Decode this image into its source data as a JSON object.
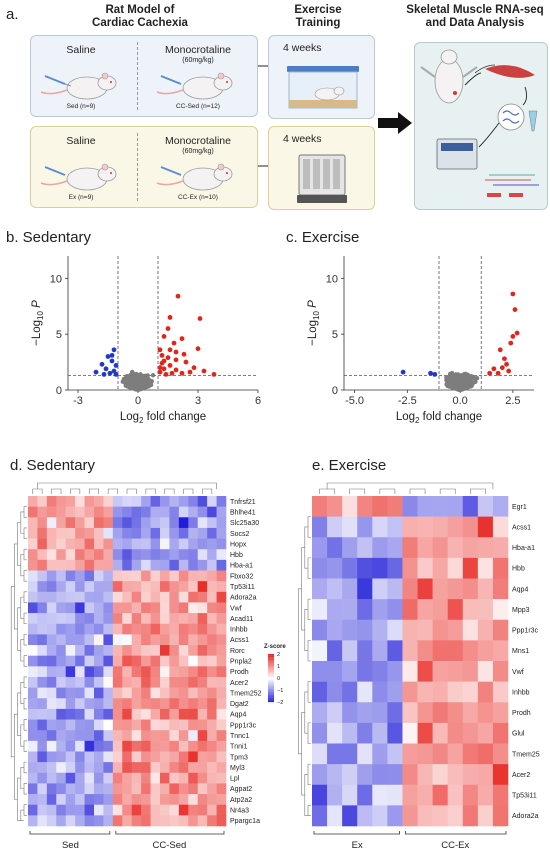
{
  "panel_a": {
    "label": "a.",
    "title_model": "Rat Model of\nCardiac Cachexia",
    "title_training": "Exercise\nTraining",
    "title_rnaseq": "Skeletal Muscle RNA-seq\nand Data Analysis",
    "top": {
      "saline": "Saline",
      "mct": "Monocrotaline",
      "dose": "(60mg/kg)",
      "g1": "Sed (n=9)",
      "g2": "CC-Sed (n=12)",
      "weeks": "4 weeks"
    },
    "bottom": {
      "saline": "Saline",
      "mct": "Monocrotaline",
      "dose": "(60mg/kg)",
      "g1": "Ex (n=9)",
      "g2": "CC-Ex (n=10)",
      "weeks": "4 weeks"
    }
  },
  "panel_b": {
    "label": "b. Sedentary"
  },
  "panel_c": {
    "label": "c. Exercise"
  },
  "panel_d": {
    "label": "d. Sedentary",
    "group1": "Sed",
    "group2": "CC-Sed"
  },
  "panel_e": {
    "label": "e. Exercise",
    "group1": "Ex",
    "group2": "CC-Ex"
  },
  "colors": {
    "up": "#e0261c",
    "down": "#2238c9",
    "ns": "#7d7d7d",
    "high": "#e8251f",
    "mid": "#ffffff",
    "low": "#1c1ad6"
  },
  "chart_data": [
    {
      "type": "scatter",
      "name": "sedentary-volcano",
      "xlabel_main": "Log",
      "xlabel_sub": "2",
      "xlabel_tail": " fold change",
      "ylabel_pre": "−Log",
      "ylabel_sub": "10",
      "ylabel_post": "P",
      "xlim": [
        -3.5,
        6
      ],
      "ylim": [
        0,
        12
      ],
      "xticks": [
        -3,
        0,
        3,
        6
      ],
      "yticks": [
        0,
        5,
        10
      ],
      "fc_threshold": [
        -1,
        1
      ],
      "p_threshold": 1.3,
      "up": [
        [
          2.0,
          8.4
        ],
        [
          1.6,
          6.5
        ],
        [
          3.1,
          6.4
        ],
        [
          1.5,
          5.5
        ],
        [
          1.3,
          4.8
        ],
        [
          2.2,
          4.6
        ],
        [
          1.8,
          4.2
        ],
        [
          3.0,
          3.7
        ],
        [
          1.1,
          3.6
        ],
        [
          1.6,
          3.6
        ],
        [
          1.9,
          3.4
        ],
        [
          2.3,
          3.2
        ],
        [
          1.2,
          3.1
        ],
        [
          1.5,
          2.9
        ],
        [
          1.9,
          2.7
        ],
        [
          2.4,
          2.5
        ],
        [
          1.2,
          2.4
        ],
        [
          1.6,
          2.2
        ],
        [
          2.8,
          2.0
        ],
        [
          1.3,
          1.9
        ],
        [
          1.9,
          1.8
        ],
        [
          3.3,
          1.7
        ],
        [
          1.1,
          1.6
        ],
        [
          2.2,
          1.5
        ],
        [
          1.4,
          1.4
        ],
        [
          1.7,
          1.5
        ],
        [
          3.8,
          1.4
        ],
        [
          2.6,
          1.6
        ],
        [
          1.3,
          2.6
        ],
        [
          1.1,
          2.0
        ]
      ],
      "down": [
        [
          -1.2,
          3.6
        ],
        [
          -1.5,
          3.0
        ],
        [
          -1.3,
          2.6
        ],
        [
          -1.8,
          2.3
        ],
        [
          -1.1,
          2.2
        ],
        [
          -1.6,
          1.9
        ],
        [
          -1.2,
          1.7
        ],
        [
          -2.1,
          1.6
        ],
        [
          -1.4,
          1.5
        ],
        [
          -1.7,
          1.4
        ],
        [
          -1.1,
          1.4
        ],
        [
          -1.3,
          3.1
        ]
      ]
    },
    {
      "type": "scatter",
      "name": "exercise-volcano",
      "xlabel_main": "Log",
      "xlabel_sub": "2",
      "xlabel_tail": " fold change",
      "ylabel_pre": "−Log",
      "ylabel_sub": "10",
      "ylabel_post": "P",
      "xlim": [
        -5.5,
        3.5
      ],
      "ylim": [
        0,
        12
      ],
      "xticks": [
        -5.0,
        -2.5,
        0.0,
        2.5
      ],
      "yticks": [
        0,
        5,
        10
      ],
      "fc_threshold": [
        -1,
        1
      ],
      "p_threshold": 1.3,
      "up": [
        [
          2.5,
          8.6
        ],
        [
          2.6,
          7.2
        ],
        [
          2.7,
          5.1
        ],
        [
          2.5,
          4.8
        ],
        [
          2.4,
          4.2
        ],
        [
          1.9,
          3.6
        ],
        [
          2.2,
          2.3
        ],
        [
          2.0,
          2.0
        ],
        [
          1.6,
          1.9
        ],
        [
          2.3,
          1.7
        ],
        [
          1.4,
          1.5
        ],
        [
          1.8,
          1.5
        ],
        [
          2.1,
          2.8
        ]
      ],
      "down": [
        [
          -2.7,
          1.6
        ],
        [
          -1.4,
          1.5
        ],
        [
          -1.2,
          1.4
        ]
      ]
    },
    {
      "type": "heatmap",
      "name": "sedentary-heatmap",
      "colorbar_title": "Z-score",
      "colorbar_ticks": [
        "2",
        "1",
        "0",
        "−1",
        "−2"
      ],
      "rows": [
        "Tnfrsf21",
        "Bhlhe41",
        "Slc25a30",
        "Socs2",
        "Hopx",
        "Hbb",
        "Hba-a1",
        "Fbxo32",
        "Tp53i11",
        "Adora2a",
        "Vwf",
        "Acad11",
        "Inhbb",
        "Acss1",
        "Rorc",
        "Pnpla2",
        "Prodh",
        "Acer2",
        "Tmem252",
        "Dgat2",
        "Aqp4",
        "Ppp1r3c",
        "Tnnc1",
        "Tnni1",
        "Tpm3",
        "Myl3",
        "Lpl",
        "Agpat2",
        "Atp2a2",
        "Nr4a3",
        "Ppargc1a"
      ],
      "col_groups": [
        9,
        12
      ]
    },
    {
      "type": "heatmap",
      "name": "exercise-heatmap",
      "rows": [
        "Egr1",
        "Acss1",
        "Hba-a1",
        "Hbb",
        "Aqp4",
        "Mpp3",
        "Ppp1r3c",
        "Mns1",
        "Vwf",
        "Inhbb",
        "Prodh",
        "Glul",
        "Tmem25",
        "Acer2",
        "Tp53i11",
        "Adora2a"
      ],
      "col_groups": [
        6,
        7
      ]
    }
  ]
}
